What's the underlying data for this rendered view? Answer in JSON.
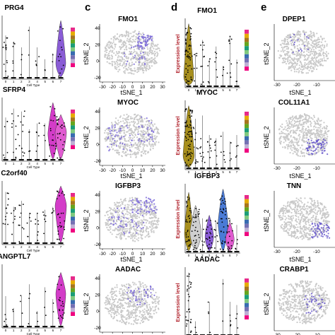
{
  "panel_letters": [
    "c",
    "d",
    "e"
  ],
  "col_b": {
    "genes": [
      "PRG4",
      "SFRP4",
      "C2orf40",
      "ANGPTL7"
    ],
    "x_axis_label": "Cell Type"
  },
  "col_c": {
    "genes": [
      "FMO1",
      "MYOC",
      "IGFBP3",
      "AADAC"
    ],
    "x_axis_label": "tSNE_1",
    "y_axis_label": "tSNE_2",
    "x_ticks": [
      "-30",
      "-20",
      "-10",
      "0",
      "10",
      "20",
      "30"
    ],
    "y_ticks": [
      "40",
      "20",
      "0",
      "-20"
    ]
  },
  "col_d": {
    "genes": [
      "FMO1",
      "MYOC",
      "IGFBP3",
      "AADAC"
    ],
    "y_axis_label": "Expression level"
  },
  "col_e": {
    "genes": [
      "DPEP1",
      "COL11A1",
      "TNN",
      "CRABP1"
    ],
    "y_axis_label": "tSNE_2",
    "x_axis_label": "tSNE_1",
    "x_ticks": [
      "-30",
      "-20",
      "-10"
    ]
  },
  "palette": [
    "#e7298a",
    "#e6ab02",
    "#a6761d",
    "#66a61e",
    "#1b9e77",
    "#7fc97f",
    "#386cb0",
    "#7570b3",
    "#beaed4",
    "#f0027f"
  ],
  "violin_colors": {
    "purple": "#8a5cd6",
    "pink": "#e05bd0",
    "magenta": "#d33cc8",
    "olive": "#a8901e",
    "blue": "#4a7bd6"
  }
}
